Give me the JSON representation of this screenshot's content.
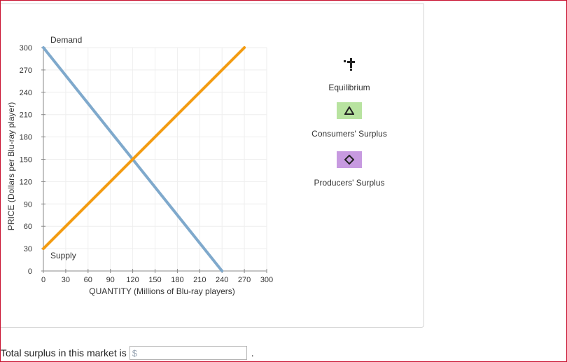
{
  "chart_data": {
    "type": "line",
    "xlabel": "QUANTITY (Millions of Blu-ray players)",
    "ylabel": "PRICE (Dollars per Blu-ray player)",
    "xlim": [
      0,
      300
    ],
    "ylim": [
      0,
      300
    ],
    "x_ticks": [
      0,
      30,
      60,
      90,
      120,
      150,
      180,
      210,
      240,
      270,
      300
    ],
    "y_ticks": [
      0,
      30,
      60,
      90,
      120,
      150,
      180,
      210,
      240,
      270,
      300
    ],
    "grid": true,
    "series": [
      {
        "name": "Demand",
        "color": "#7fa9cc",
        "points": [
          [
            0,
            300
          ],
          [
            240,
            0
          ]
        ]
      },
      {
        "name": "Supply",
        "color": "#f39c12",
        "points": [
          [
            0,
            30
          ],
          [
            270,
            300
          ]
        ]
      }
    ]
  },
  "legend": {
    "equilibrium": {
      "label": "Equilibrium",
      "icon": "equilibrium-cross-icon",
      "color": "#222222"
    },
    "consumers_surplus": {
      "label": "Consumers' Surplus",
      "icon": "triangle-icon",
      "color": "#b8e3a0"
    },
    "producers_surplus": {
      "label": "Producers' Surplus",
      "icon": "diamond-icon",
      "color": "#c79ae0"
    }
  },
  "question": {
    "prefix": "Total surplus in this market is",
    "placeholder": "$",
    "value": "",
    "suffix": "."
  }
}
